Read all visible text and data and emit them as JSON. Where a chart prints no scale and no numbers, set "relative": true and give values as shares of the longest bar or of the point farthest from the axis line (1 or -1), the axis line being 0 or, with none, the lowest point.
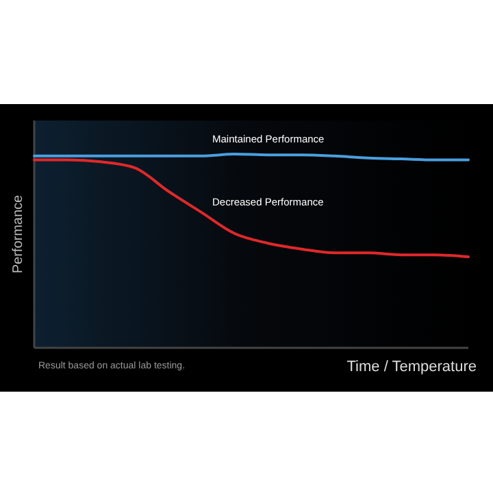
{
  "chart_data": {
    "type": "line",
    "relative": true,
    "ylabel": "Performance",
    "xlabel": "Time / Temperature",
    "annotations": [
      "Result based on actual lab testing."
    ],
    "categories": [
      null,
      null,
      null,
      null,
      null,
      null,
      null,
      null,
      null,
      null,
      null,
      null,
      null,
      null
    ],
    "series": [
      {
        "name": "Maintained Performance",
        "color": "#4a9fe0",
        "values": [
          0.99,
          0.99,
          0.99,
          0.99,
          0.99,
          0.99,
          1,
          0.996,
          0.996,
          0.99,
          0.98,
          0.975,
          0.97,
          0.97
        ]
      },
      {
        "name": "Decreased Performance",
        "color": "#e0282a",
        "values": [
          0.97,
          0.97,
          0.96,
          0.93,
          0.81,
          0.7,
          0.59,
          0.54,
          0.51,
          0.49,
          0.49,
          0.48,
          0.48,
          0.47
        ]
      }
    ],
    "legend": false,
    "grid": false
  }
}
